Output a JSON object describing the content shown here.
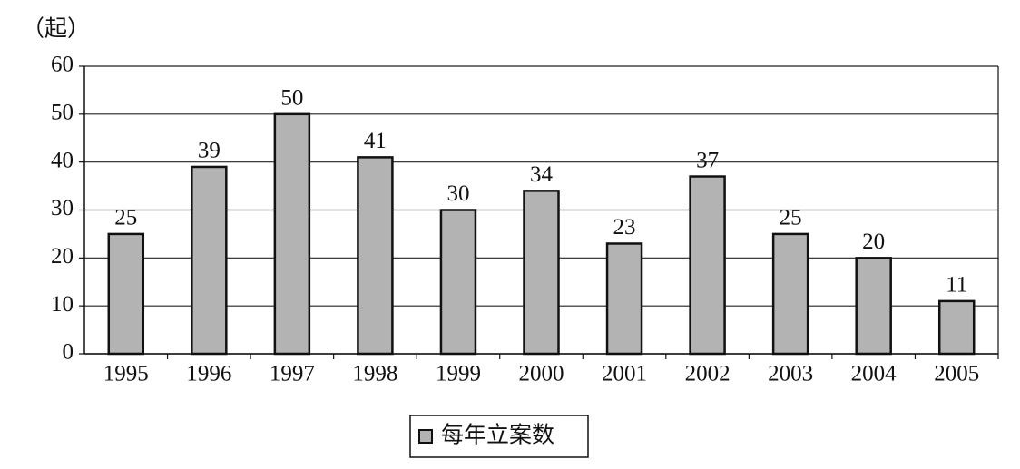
{
  "chart_data": {
    "type": "bar",
    "y_label": "（起）",
    "categories": [
      "1995",
      "1996",
      "1997",
      "1998",
      "1999",
      "2000",
      "2001",
      "2002",
      "2003",
      "2004",
      "2005"
    ],
    "series": [
      {
        "name": "每年立案数",
        "color": "#b3b3b3",
        "values": [
          25,
          39,
          50,
          41,
          30,
          34,
          23,
          37,
          25,
          20,
          11
        ]
      }
    ],
    "ylim": [
      0,
      60
    ],
    "yticks": [
      0,
      10,
      20,
      30,
      40,
      50,
      60
    ],
    "grid": true,
    "legend": "bottom"
  }
}
